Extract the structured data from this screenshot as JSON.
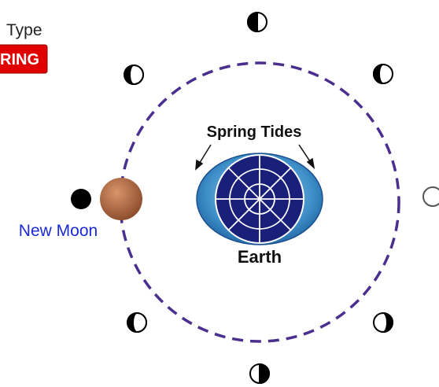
{
  "header": {
    "label": "Type",
    "badge": "RING"
  },
  "diagram": {
    "title": "Spring Tides",
    "earth_label": "Earth",
    "moon_label": "New Moon"
  }
}
